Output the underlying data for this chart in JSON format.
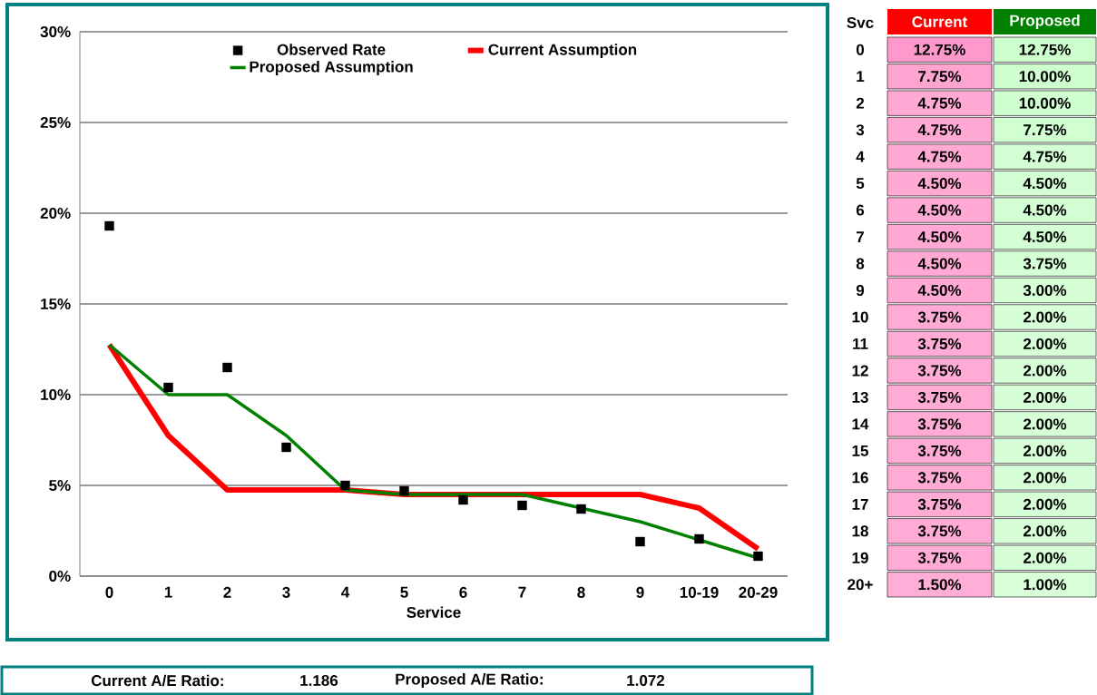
{
  "chart_data": [
    {
      "type": "line",
      "xlabel": "Service",
      "categories": [
        "0",
        "1",
        "2",
        "3",
        "4",
        "5",
        "6",
        "7",
        "8",
        "9",
        "10-19",
        "20-29"
      ],
      "series": [
        {
          "name": "Observed Rate",
          "type": "scatter",
          "marker": "square",
          "color": "#000000",
          "values": [
            19.3,
            10.4,
            11.5,
            7.1,
            5.0,
            4.7,
            4.2,
            3.9,
            3.7,
            1.9,
            2.05,
            1.1
          ]
        },
        {
          "name": "Current Assumption",
          "type": "line",
          "color": "#ff0000",
          "values": [
            12.75,
            7.75,
            4.75,
            4.75,
            4.75,
            4.5,
            4.5,
            4.5,
            4.5,
            4.5,
            3.75,
            1.5
          ]
        },
        {
          "name": "Proposed Assumption",
          "type": "line",
          "color": "#008000",
          "values": [
            12.75,
            10,
            10,
            7.75,
            4.75,
            4.5,
            4.5,
            4.5,
            3.75,
            3,
            2,
            1
          ]
        }
      ],
      "ylim": [
        0,
        30
      ],
      "yticks": [
        {
          "value": 0,
          "label": "0%"
        },
        {
          "value": 5,
          "label": "5%"
        },
        {
          "value": 10,
          "label": "10%"
        },
        {
          "value": 15,
          "label": "15%"
        },
        {
          "value": 20,
          "label": "20%"
        },
        {
          "value": 25,
          "label": "25%"
        },
        {
          "value": 30,
          "label": "30%"
        }
      ],
      "grid": "y",
      "legend": "top",
      "annotations": [
        "Current A/E Ratio:",
        "1.186",
        "Proposed A/E Ratio:",
        "1.072"
      ]
    },
    {
      "type": "heatmap",
      "ylabel": "Svc",
      "categories": [
        "Current",
        "Proposed"
      ],
      "y_categories": [
        "0",
        "1",
        "2",
        "3",
        "4",
        "5",
        "6",
        "7",
        "8",
        "9",
        "10",
        "11",
        "12",
        "13",
        "14",
        "15",
        "16",
        "17",
        "18",
        "19",
        "20+"
      ],
      "colors": [
        "#ff99cc",
        "#ccffcc"
      ],
      "cells": [
        [
          12.75,
          12.75
        ],
        [
          7.75,
          10.0
        ],
        [
          4.75,
          10.0
        ],
        [
          4.75,
          7.75
        ],
        [
          4.75,
          4.75
        ],
        [
          4.5,
          4.5
        ],
        [
          4.5,
          4.5
        ],
        [
          4.5,
          4.5
        ],
        [
          4.5,
          3.75
        ],
        [
          4.5,
          3.0
        ],
        [
          3.75,
          2.0
        ],
        [
          3.75,
          2.0
        ],
        [
          3.75,
          2.0
        ],
        [
          3.75,
          2.0
        ],
        [
          3.75,
          2.0
        ],
        [
          3.75,
          2.0
        ],
        [
          3.75,
          2.0
        ],
        [
          3.75,
          2.0
        ],
        [
          3.75,
          2.0
        ],
        [
          3.75,
          2.0
        ],
        [
          1.5,
          1.0
        ]
      ],
      "cell_labels": [
        [
          "12.75%",
          "12.75%"
        ],
        [
          "7.75%",
          "10.00%"
        ],
        [
          "4.75%",
          "10.00%"
        ],
        [
          "4.75%",
          "7.75%"
        ],
        [
          "4.75%",
          "4.75%"
        ],
        [
          "4.50%",
          "4.50%"
        ],
        [
          "4.50%",
          "4.50%"
        ],
        [
          "4.50%",
          "4.50%"
        ],
        [
          "4.50%",
          "3.75%"
        ],
        [
          "4.50%",
          "3.00%"
        ],
        [
          "3.75%",
          "2.00%"
        ],
        [
          "3.75%",
          "2.00%"
        ],
        [
          "3.75%",
          "2.00%"
        ],
        [
          "3.75%",
          "2.00%"
        ],
        [
          "3.75%",
          "2.00%"
        ],
        [
          "3.75%",
          "2.00%"
        ],
        [
          "3.75%",
          "2.00%"
        ],
        [
          "3.75%",
          "2.00%"
        ],
        [
          "3.75%",
          "2.00%"
        ],
        [
          "3.75%",
          "2.00%"
        ],
        [
          "1.50%",
          "1.00%"
        ]
      ]
    }
  ]
}
